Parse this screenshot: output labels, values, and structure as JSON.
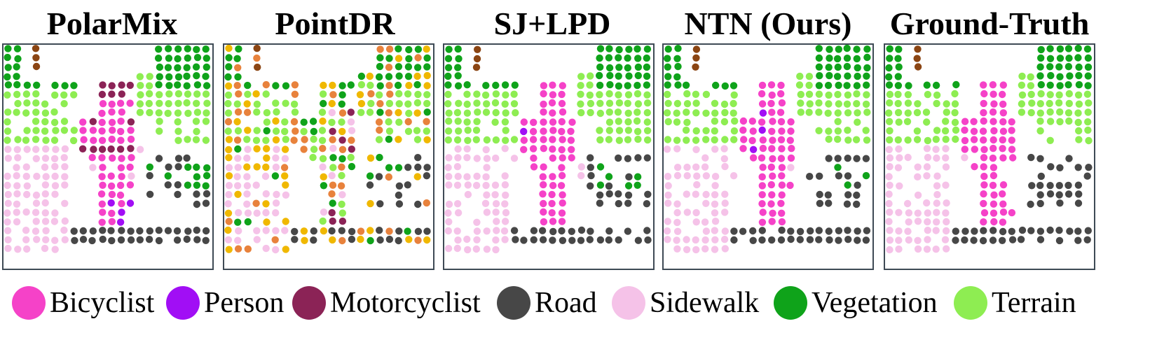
{
  "panels": [
    {
      "key": "polarmix",
      "title": "PolarMix"
    },
    {
      "key": "pointdr",
      "title": "PointDR"
    },
    {
      "key": "sjlpd",
      "title": "SJ+LPD"
    },
    {
      "key": "ntn",
      "title": "NTN (Ours)"
    },
    {
      "key": "gt",
      "title": "Ground-Truth"
    }
  ],
  "legend": [
    {
      "label": "Bicyclist",
      "color": "#f542c8"
    },
    {
      "label": "Person",
      "color": "#a10ef5"
    },
    {
      "label": "Motorcyclist",
      "color": "#8b2356"
    },
    {
      "label": "Road",
      "color": "#474747"
    },
    {
      "label": "Sidewalk",
      "color": "#f5c2e8"
    },
    {
      "label": "Vegetation",
      "color": "#0fa31a"
    },
    {
      "label": "Terrain",
      "color": "#8eed52"
    }
  ],
  "extra_colors": {
    "trunk": "#8b4513",
    "other": "#f0b800",
    "fence": "#e8823c"
  }
}
